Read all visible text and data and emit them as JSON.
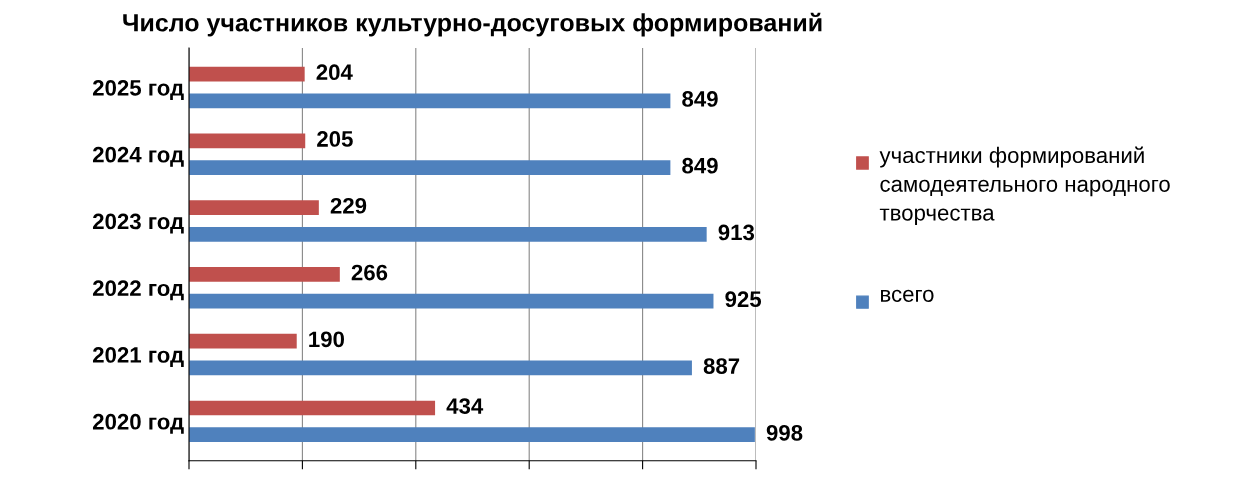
{
  "chart_data": {
    "type": "bar",
    "orientation": "horizontal",
    "title": "Число участников культурно-досуговых формирований",
    "categories": [
      "2025 год",
      "2024 год",
      "2023 год",
      "2022 год",
      "2021 год",
      "2020 год"
    ],
    "series": [
      {
        "name": "участники формирований самодеятельного народного творчества",
        "color": "#c0504d",
        "values": [
          204,
          205,
          229,
          266,
          190,
          434
        ]
      },
      {
        "name": "всего",
        "color": "#4f81bd",
        "values": [
          849,
          849,
          913,
          925,
          887,
          998
        ]
      }
    ],
    "xlim": [
      0,
      1000
    ],
    "xticks": [
      {
        "value": 0,
        "label": null
      },
      {
        "value": 200,
        "label": null
      },
      {
        "value": 400,
        "label": null
      },
      {
        "value": 600,
        "label": null
      },
      {
        "value": 800,
        "label": null
      },
      {
        "value": 1000,
        "label": null
      }
    ],
    "tick_labels": "y",
    "grid": "x",
    "legend": "right",
    "data_labels": true
  }
}
